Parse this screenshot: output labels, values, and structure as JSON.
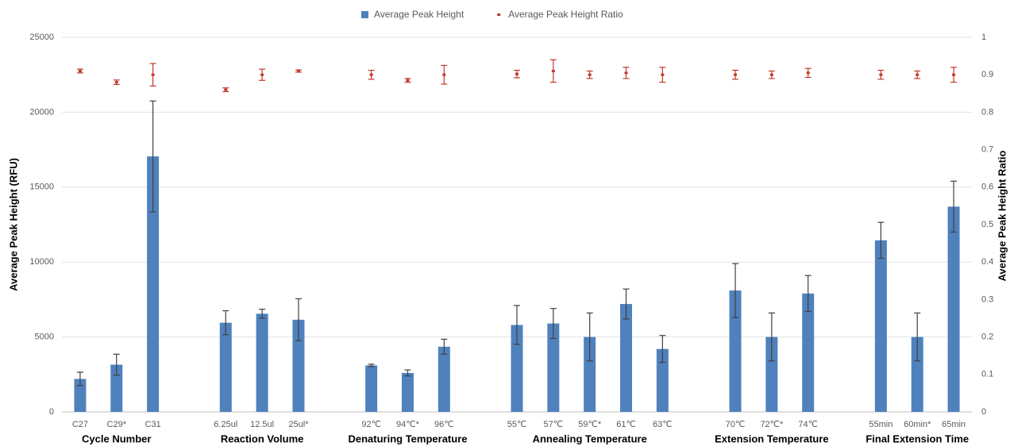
{
  "chart_data": {
    "type": "bar",
    "categories": [
      "C27",
      "C29*",
      "C31",
      null,
      "6.25ul",
      "12.5ul",
      "25ul*",
      null,
      "92℃",
      "94℃*",
      "96℃",
      null,
      "55℃",
      "57℃",
      "59℃*",
      "61℃",
      "63℃",
      null,
      "70℃",
      "72℃*",
      "74℃",
      null,
      "55min",
      "60min*",
      "65min"
    ],
    "group_labels": [
      "Cycle Number",
      "Reaction Volume",
      "Denaturing Temperature",
      "Annealing Temperature",
      "Extension Temperature",
      "Final Extension Time"
    ],
    "series": [
      {
        "name": "Average Peak Height",
        "type": "bar",
        "color": "#4f81bd",
        "values": [
          2200,
          3150,
          17050,
          null,
          5950,
          6550,
          6150,
          null,
          3100,
          2600,
          4350,
          null,
          5800,
          5900,
          5000,
          7200,
          4200,
          null,
          8100,
          5000,
          7900,
          null,
          11450,
          5000,
          13700
        ],
        "errors": [
          450,
          700,
          3700,
          null,
          800,
          300,
          1400,
          null,
          80,
          200,
          500,
          null,
          1300,
          1000,
          1600,
          1000,
          900,
          null,
          1800,
          1600,
          1200,
          null,
          1200,
          1600,
          1700
        ]
      },
      {
        "name": "Average Peak Height Ratio",
        "type": "scatter",
        "axis": "y2",
        "color": "#c0392b",
        "values": [
          0.91,
          0.88,
          0.9,
          null,
          0.86,
          0.9,
          0.91,
          null,
          0.9,
          0.885,
          0.9,
          null,
          0.902,
          0.91,
          0.9,
          0.905,
          0.9,
          null,
          0.9,
          0.9,
          0.905,
          null,
          0.9,
          0.9,
          0.9
        ],
        "errors": [
          0.005,
          0.006,
          0.03,
          null,
          0.005,
          0.015,
          0.003,
          null,
          0.012,
          0.005,
          0.025,
          null,
          0.01,
          0.03,
          0.01,
          0.015,
          0.02,
          null,
          0.012,
          0.01,
          0.012,
          null,
          0.012,
          0.01,
          0.02
        ]
      }
    ],
    "y_label": "Average Peak Height (RFU)",
    "y2_label": "Average Peak Height Ratio",
    "ylim": [
      0,
      25000
    ],
    "yticks": [
      0,
      5000,
      10000,
      15000,
      20000,
      25000
    ],
    "y2lim": [
      0,
      1
    ],
    "y2ticks": [
      0,
      0.1,
      0.2,
      0.3,
      0.4,
      0.5,
      0.6,
      0.7,
      0.8,
      0.9,
      1
    ],
    "grid": true,
    "legend": "top"
  }
}
